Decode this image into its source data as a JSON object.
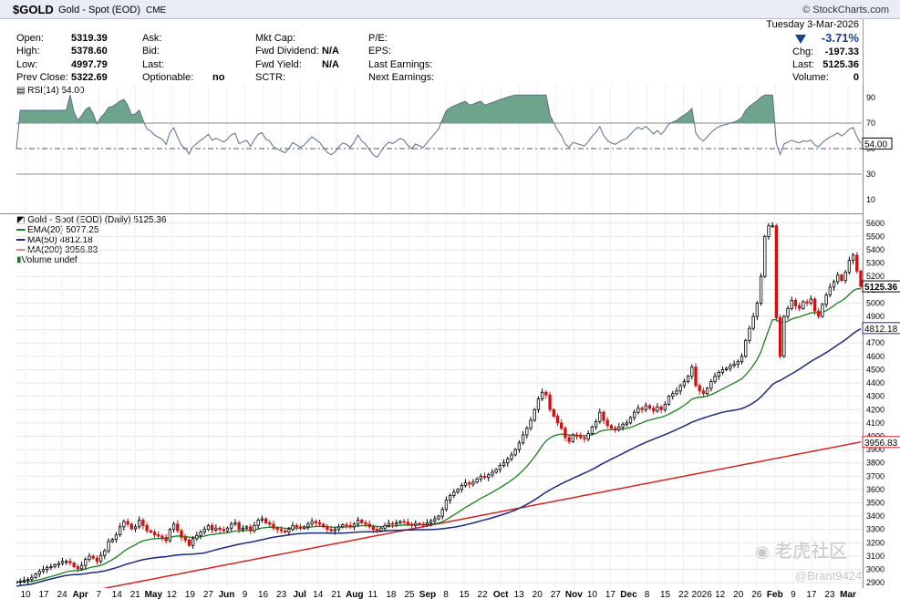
{
  "header": {
    "symbol": "$GOLD",
    "name": "Gold - Spot (EOD)",
    "exchange": "CME",
    "brand": "© StockCharts.com"
  },
  "quote": {
    "date": "Tuesday  3-Mar-2026",
    "pct_change": "-3.71%",
    "open_label": "Open:",
    "open": "5319.39",
    "high_label": "High:",
    "high": "5378.60",
    "low_label": "Low:",
    "low": "4997.79",
    "prev_label": "Prev Close:",
    "prev": "5322.69",
    "ask": "Ask:",
    "bid": "Bid:",
    "last_lbl": "Last:",
    "optionable": "Optionable:",
    "optionable_val": "no",
    "mktcap": "Mkt Cap:",
    "fwddiv": "Fwd Dividend:",
    "fwddiv_val": "N/A",
    "fwdyield": "Fwd Yield:",
    "fwdyield_val": "N/A",
    "sctr": "SCTR:",
    "pe": "P/E:",
    "eps": "EPS:",
    "lastearn": "Last Earnings:",
    "nextearn": "Next Earnings:",
    "chg_label": "Chg:",
    "chg": "-197.33",
    "last_label": "Last:",
    "last": "5125.36",
    "vol_label": "Volume:",
    "vol": "0"
  },
  "rsi": {
    "label": "RSI(14) 54.00",
    "value_badge": "54.00",
    "ticks": [
      "90",
      "70",
      "50",
      "30",
      "10"
    ]
  },
  "legend": {
    "title": "Gold - Spot (EOD) (Daily) 5125.36",
    "ema": "EMA(20) 5077.25",
    "ma50": "MA(50) 4812.18",
    "ma200": "MA(200) 3956.83",
    "volume": "Volume undef"
  },
  "badges": {
    "last": "5125.36",
    "ma50": "4812.18",
    "ma200": "3956.83"
  },
  "colors": {
    "ema": "#1e7b1e",
    "ma50": "#1c2a7a",
    "ma200": "#d42020",
    "up": "#000000",
    "down": "#d01010",
    "rsi_fill": "#6fa48c"
  },
  "watermark": {
    "line1": "老虎社区",
    "line2": "@Brant9424"
  },
  "chart_data": {
    "type": "candlestick",
    "title": "Gold - Spot (EOD) (Daily)",
    "price_ticks": [
      2900,
      3000,
      3100,
      3200,
      3300,
      3400,
      3500,
      3600,
      3700,
      3800,
      3900,
      4000,
      4100,
      4200,
      4300,
      4400,
      4500,
      4600,
      4700,
      4800,
      4900,
      5000,
      5100,
      5200,
      5300,
      5400,
      5500,
      5600
    ],
    "ylim": [
      2860,
      5660
    ],
    "x_labels": [
      "10",
      "17",
      "24",
      "Apr",
      "7",
      "14",
      "21",
      "May",
      "12",
      "19",
      "27",
      "Jun",
      "9",
      "16",
      "23",
      "Jul",
      "14",
      "21",
      "Aug",
      "11",
      "18",
      "25",
      "Sep",
      "8",
      "15",
      "22",
      "Oct",
      "13",
      "20",
      "27",
      "Nov",
      "10",
      "17",
      "Dec",
      "8",
      "15",
      "22",
      "2026",
      "12",
      "20",
      "26",
      "Feb",
      "9",
      "17",
      "23",
      "Mar"
    ],
    "close": [
      2905,
      2912,
      2918,
      2925,
      2940,
      2965,
      2985,
      3000,
      3015,
      3020,
      3035,
      3045,
      3060,
      3060,
      3048,
      3020,
      3005,
      3030,
      3075,
      3100,
      3085,
      3060,
      3105,
      3140,
      3210,
      3225,
      3260,
      3320,
      3360,
      3340,
      3305,
      3320,
      3370,
      3330,
      3290,
      3280,
      3260,
      3250,
      3240,
      3215,
      3300,
      3340,
      3290,
      3240,
      3220,
      3180,
      3230,
      3255,
      3280,
      3300,
      3330,
      3295,
      3310,
      3300,
      3290,
      3310,
      3340,
      3350,
      3300,
      3310,
      3320,
      3290,
      3330,
      3370,
      3380,
      3350,
      3340,
      3310,
      3300,
      3290,
      3280,
      3300,
      3330,
      3320,
      3310,
      3320,
      3340,
      3360,
      3350,
      3340,
      3320,
      3300,
      3290,
      3300,
      3320,
      3335,
      3330,
      3320,
      3340,
      3370,
      3350,
      3340,
      3320,
      3300,
      3290,
      3310,
      3330,
      3345,
      3340,
      3350,
      3360,
      3355,
      3340,
      3330,
      3345,
      3340,
      3335,
      3350,
      3365,
      3380,
      3400,
      3450,
      3520,
      3555,
      3580,
      3600,
      3630,
      3650,
      3640,
      3655,
      3680,
      3700,
      3690,
      3710,
      3730,
      3750,
      3780,
      3800,
      3830,
      3860,
      3900,
      3950,
      4010,
      4060,
      4120,
      4200,
      4280,
      4330,
      4310,
      4200,
      4150,
      4100,
      4060,
      3990,
      3960,
      4010,
      4000,
      3990,
      3980,
      4020,
      4070,
      4110,
      4180,
      4120,
      4080,
      4060,
      4050,
      4070,
      4090,
      4100,
      4140,
      4180,
      4210,
      4200,
      4230,
      4210,
      4190,
      4220,
      4200,
      4240,
      4300,
      4320,
      4340,
      4380,
      4410,
      4450,
      4520,
      4380,
      4340,
      4320,
      4360,
      4410,
      4450,
      4480,
      4500,
      4510,
      4530,
      4540,
      4560,
      4600,
      4720,
      4810,
      4900,
      5000,
      5200,
      5500,
      5580,
      5580,
      4890,
      4600,
      4900,
      4960,
      5020,
      4980,
      4960,
      5010,
      5000,
      5030,
      4940,
      4900,
      4990,
      5060,
      5120,
      5160,
      5210,
      5170,
      5230,
      5320,
      5360,
      5240,
      5125
    ],
    "ema20": 5077.25,
    "ma50": 4812.18,
    "ma200": 3956.83,
    "rsi_last": 54.0,
    "rsi_ylim": [
      0,
      100
    ]
  }
}
